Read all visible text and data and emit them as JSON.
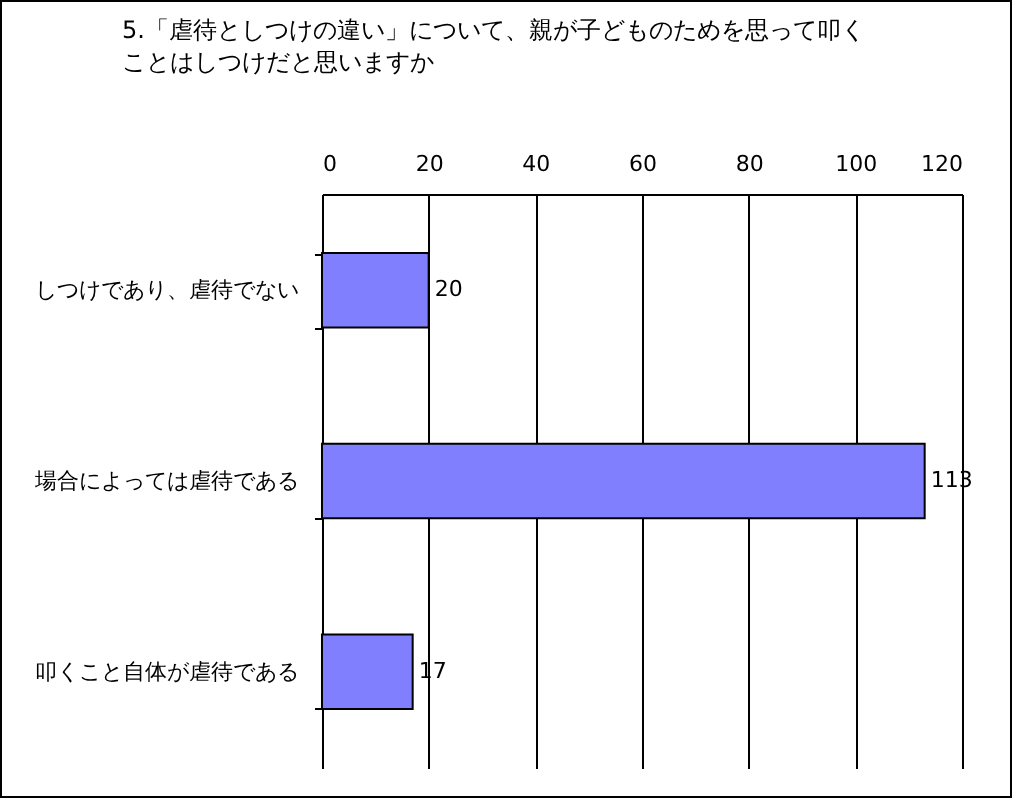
{
  "chart_data": {
    "type": "bar",
    "orientation": "horizontal",
    "title": "5.「虐待としつけの違い」について、親が子どものためを思って叩くことはしつけだと思いますか",
    "categories": [
      "しつけであり、虐待でない",
      "場合によっては虐待である",
      "叩くこと自体が虐待である"
    ],
    "values": [
      20,
      113,
      17
    ],
    "color": "#8080ff",
    "xlim": [
      0,
      120
    ],
    "xticks": [
      0,
      20,
      40,
      60,
      80,
      100,
      120
    ],
    "grid": "x",
    "data_labels": true
  }
}
